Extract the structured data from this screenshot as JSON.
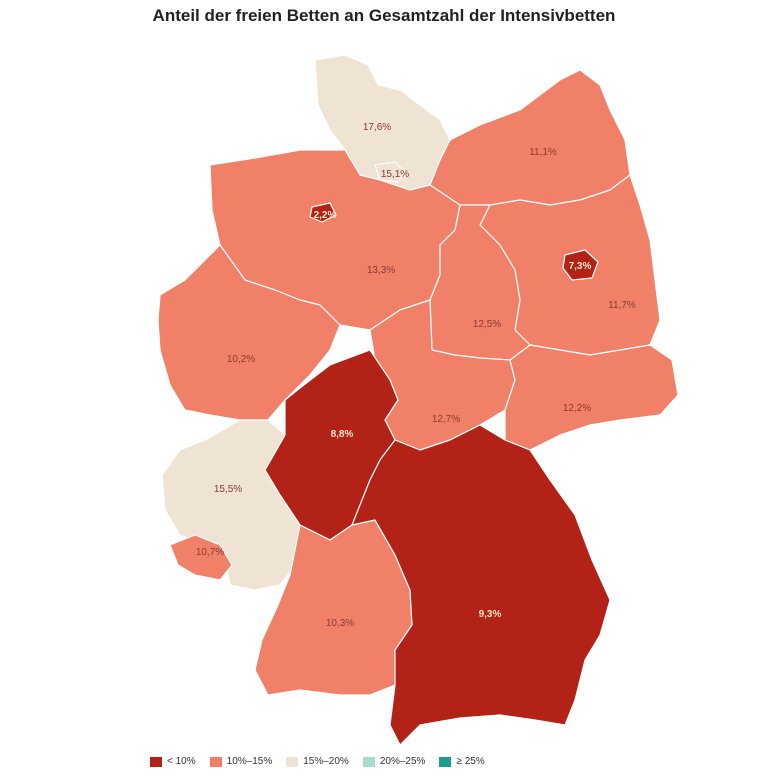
{
  "title": "Anteil der freien Betten an Gesamtzahl der Intensivbetten",
  "colors": {
    "lt10": "#b22216",
    "10to15": "#f08068",
    "15to20": "#efe3d4",
    "20to25": "#a9d9cf",
    "ge25": "#1e9c8c"
  },
  "legend": [
    {
      "label": "< 10%",
      "color": "#b22216"
    },
    {
      "label": "10%–15%",
      "color": "#f08068"
    },
    {
      "label": "15%–20%",
      "color": "#efe3d4"
    },
    {
      "label": "20%–25%",
      "color": "#a9d9cf"
    },
    {
      "label": "≥ 25%",
      "color": "#1e9c8c"
    }
  ],
  "regions": [
    {
      "id": "schleswig-holstein",
      "value": "17,6%",
      "class": "15to20"
    },
    {
      "id": "hamburg",
      "value": "15,1%",
      "class": "15to20"
    },
    {
      "id": "mecklenburg-vorpommern",
      "value": "11,1%",
      "class": "10to15"
    },
    {
      "id": "bremen",
      "value": "2,2%",
      "class": "lt10"
    },
    {
      "id": "niedersachsen",
      "value": "13,3%",
      "class": "10to15"
    },
    {
      "id": "berlin",
      "value": "7,3%",
      "class": "lt10"
    },
    {
      "id": "brandenburg",
      "value": "11,7%",
      "class": "10to15"
    },
    {
      "id": "sachsen-anhalt",
      "value": "12,5%",
      "class": "10to15"
    },
    {
      "id": "nordrhein-westfalen",
      "value": "10,2%",
      "class": "10to15"
    },
    {
      "id": "hessen",
      "value": "8,8%",
      "class": "lt10"
    },
    {
      "id": "thueringen",
      "value": "12,7%",
      "class": "10to15"
    },
    {
      "id": "sachsen",
      "value": "12,2%",
      "class": "10to15"
    },
    {
      "id": "rheinland-pfalz",
      "value": "15,5%",
      "class": "15to20"
    },
    {
      "id": "saarland",
      "value": "10,7%",
      "class": "10to15"
    },
    {
      "id": "baden-wuerttemberg",
      "value": "10,3%",
      "class": "10to15"
    },
    {
      "id": "bayern",
      "value": "9,3%",
      "class": "lt10"
    }
  ]
}
